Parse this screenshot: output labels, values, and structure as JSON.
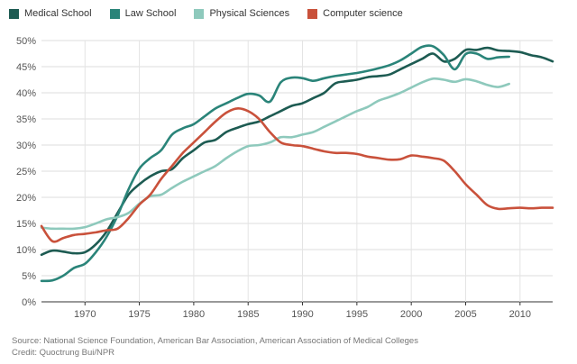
{
  "chart_data": {
    "type": "line",
    "x_ticks": [
      1970,
      1975,
      1980,
      1985,
      1990,
      1995,
      2000,
      2005,
      2010
    ],
    "y_ticks": [
      "0%",
      "5%",
      "10%",
      "15%",
      "20%",
      "25%",
      "30%",
      "35%",
      "40%",
      "45%",
      "50%"
    ],
    "xlim": [
      1966,
      2013
    ],
    "ylim": [
      0,
      50
    ],
    "grid": true,
    "legend_position": "top-left",
    "series": [
      {
        "name": "Medical School",
        "color": "#1d5b52",
        "points": [
          [
            1966,
            9
          ],
          [
            1967,
            9.8
          ],
          [
            1968,
            9.6
          ],
          [
            1969,
            9.3
          ],
          [
            1970,
            9.5
          ],
          [
            1971,
            11
          ],
          [
            1972,
            13.5
          ],
          [
            1973,
            17
          ],
          [
            1974,
            20.5
          ],
          [
            1975,
            22.5
          ],
          [
            1976,
            24
          ],
          [
            1977,
            25
          ],
          [
            1978,
            25.4
          ],
          [
            1979,
            27.5
          ],
          [
            1980,
            29
          ],
          [
            1981,
            30.5
          ],
          [
            1982,
            31
          ],
          [
            1983,
            32.5
          ],
          [
            1984,
            33.3
          ],
          [
            1985,
            34
          ],
          [
            1986,
            34.5
          ],
          [
            1987,
            35.5
          ],
          [
            1988,
            36.5
          ],
          [
            1989,
            37.5
          ],
          [
            1990,
            38
          ],
          [
            1991,
            39
          ],
          [
            1992,
            40
          ],
          [
            1993,
            41.8
          ],
          [
            1994,
            42.2
          ],
          [
            1995,
            42.5
          ],
          [
            1996,
            43
          ],
          [
            1997,
            43.2
          ],
          [
            1998,
            43.5
          ],
          [
            1999,
            44.5
          ],
          [
            2000,
            45.5
          ],
          [
            2001,
            46.5
          ],
          [
            2002,
            47.5
          ],
          [
            2003,
            46
          ],
          [
            2004,
            46.5
          ],
          [
            2005,
            48.2
          ],
          [
            2006,
            48.2
          ],
          [
            2007,
            48.6
          ],
          [
            2008,
            48.1
          ],
          [
            2009,
            48
          ],
          [
            2010,
            47.8
          ],
          [
            2011,
            47.2
          ],
          [
            2012,
            46.8
          ],
          [
            2013,
            46
          ]
        ]
      },
      {
        "name": "Law School",
        "color": "#2a8479",
        "points": [
          [
            1966,
            4
          ],
          [
            1967,
            4.1
          ],
          [
            1968,
            5
          ],
          [
            1969,
            6.5
          ],
          [
            1970,
            7.3
          ],
          [
            1971,
            9.5
          ],
          [
            1972,
            12.5
          ],
          [
            1973,
            16.5
          ],
          [
            1974,
            21.5
          ],
          [
            1975,
            25.5
          ],
          [
            1976,
            27.5
          ],
          [
            1977,
            29
          ],
          [
            1978,
            32
          ],
          [
            1979,
            33.2
          ],
          [
            1980,
            34
          ],
          [
            1981,
            35.5
          ],
          [
            1982,
            37
          ],
          [
            1983,
            38
          ],
          [
            1984,
            39
          ],
          [
            1985,
            39.8
          ],
          [
            1986,
            39.5
          ],
          [
            1987,
            38.3
          ],
          [
            1988,
            42
          ],
          [
            1989,
            42.9
          ],
          [
            1990,
            42.8
          ],
          [
            1991,
            42.3
          ],
          [
            1992,
            42.8
          ],
          [
            1993,
            43.2
          ],
          [
            1994,
            43.5
          ],
          [
            1995,
            43.8
          ],
          [
            1996,
            44.2
          ],
          [
            1997,
            44.7
          ],
          [
            1998,
            45.3
          ],
          [
            1999,
            46.2
          ],
          [
            2000,
            47.5
          ],
          [
            2001,
            48.8
          ],
          [
            2002,
            48.9
          ],
          [
            2003,
            47.2
          ],
          [
            2004,
            44.5
          ],
          [
            2005,
            47.4
          ],
          [
            2006,
            47.5
          ],
          [
            2007,
            46.5
          ],
          [
            2008,
            46.8
          ],
          [
            2009,
            46.9
          ]
        ]
      },
      {
        "name": "Physical Sciences",
        "color": "#8ec9bc",
        "points": [
          [
            1966,
            14.2
          ],
          [
            1967,
            14
          ],
          [
            1968,
            14
          ],
          [
            1969,
            14
          ],
          [
            1970,
            14.3
          ],
          [
            1971,
            15
          ],
          [
            1972,
            15.8
          ],
          [
            1973,
            16.2
          ],
          [
            1974,
            17
          ],
          [
            1975,
            18.8
          ],
          [
            1976,
            20.2
          ],
          [
            1977,
            20.5
          ],
          [
            1978,
            21.8
          ],
          [
            1979,
            23
          ],
          [
            1980,
            24
          ],
          [
            1981,
            25
          ],
          [
            1982,
            26
          ],
          [
            1983,
            27.5
          ],
          [
            1984,
            28.8
          ],
          [
            1985,
            29.8
          ],
          [
            1986,
            30
          ],
          [
            1987,
            30.5
          ],
          [
            1988,
            31.5
          ],
          [
            1989,
            31.5
          ],
          [
            1990,
            32
          ],
          [
            1991,
            32.5
          ],
          [
            1992,
            33.5
          ],
          [
            1993,
            34.5
          ],
          [
            1994,
            35.5
          ],
          [
            1995,
            36.5
          ],
          [
            1996,
            37.3
          ],
          [
            1997,
            38.5
          ],
          [
            1998,
            39.2
          ],
          [
            1999,
            40
          ],
          [
            2000,
            41
          ],
          [
            2001,
            42
          ],
          [
            2002,
            42.7
          ],
          [
            2003,
            42.5
          ],
          [
            2004,
            42.1
          ],
          [
            2005,
            42.6
          ],
          [
            2006,
            42.2
          ],
          [
            2007,
            41.5
          ],
          [
            2008,
            41.1
          ],
          [
            2009,
            41.7
          ]
        ]
      },
      {
        "name": "Computer science",
        "color": "#c9513b",
        "points": [
          [
            1966,
            14.5
          ],
          [
            1967,
            11.6
          ],
          [
            1968,
            12.2
          ],
          [
            1969,
            12.8
          ],
          [
            1970,
            13
          ],
          [
            1971,
            13.3
          ],
          [
            1972,
            13.7
          ],
          [
            1973,
            14
          ],
          [
            1974,
            16
          ],
          [
            1975,
            18.6
          ],
          [
            1976,
            20.5
          ],
          [
            1977,
            23.5
          ],
          [
            1978,
            26
          ],
          [
            1979,
            28.5
          ],
          [
            1980,
            30.5
          ],
          [
            1981,
            32.5
          ],
          [
            1982,
            34.5
          ],
          [
            1983,
            36.2
          ],
          [
            1984,
            37
          ],
          [
            1985,
            36.5
          ],
          [
            1986,
            35
          ],
          [
            1987,
            32.5
          ],
          [
            1988,
            30.5
          ],
          [
            1989,
            30
          ],
          [
            1990,
            29.8
          ],
          [
            1991,
            29.3
          ],
          [
            1992,
            28.8
          ],
          [
            1993,
            28.5
          ],
          [
            1994,
            28.5
          ],
          [
            1995,
            28.3
          ],
          [
            1996,
            27.8
          ],
          [
            1997,
            27.5
          ],
          [
            1998,
            27.2
          ],
          [
            1999,
            27.3
          ],
          [
            2000,
            28
          ],
          [
            2001,
            27.8
          ],
          [
            2002,
            27.5
          ],
          [
            2003,
            27
          ],
          [
            2004,
            25
          ],
          [
            2005,
            22.5
          ],
          [
            2006,
            20.5
          ],
          [
            2007,
            18.5
          ],
          [
            2008,
            17.8
          ],
          [
            2009,
            17.9
          ],
          [
            2010,
            18
          ],
          [
            2011,
            17.9
          ],
          [
            2012,
            18
          ],
          [
            2013,
            18
          ]
        ]
      }
    ]
  },
  "source_text": "Source: National Science Foundation, American Bar Association, American Association of Medical Colleges",
  "credit_text": "Credit: Quoctrung Bui/NPR"
}
